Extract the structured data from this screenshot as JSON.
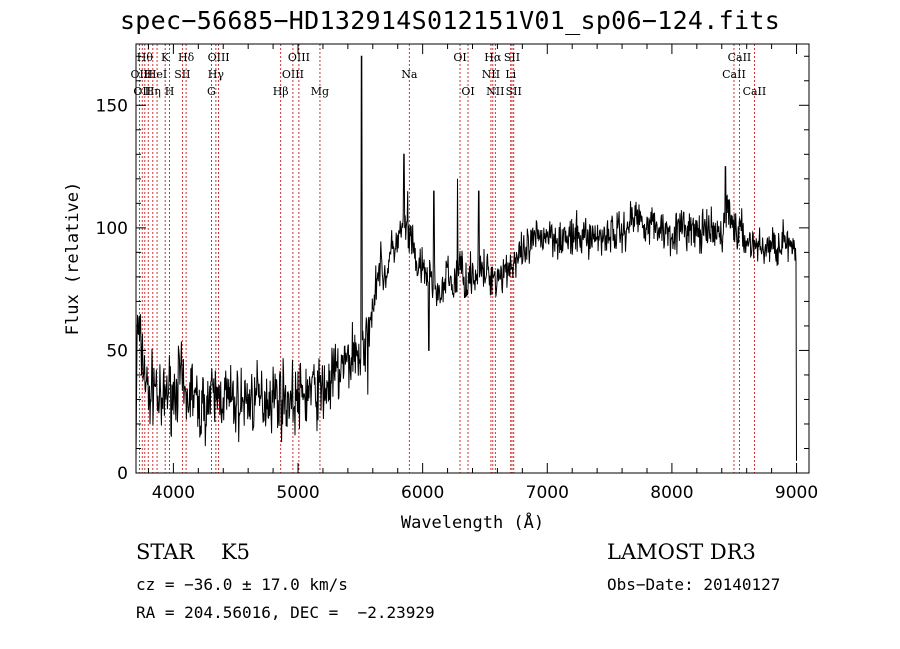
{
  "title": "spec−56685−HD132914S012151V01_sp06−124.fits",
  "info": {
    "object_class": "STAR",
    "subclass": "K5",
    "cz": "cz = −36.0 ± 17.0 km/s",
    "radec": "RA = 204.56016, DEC =  −2.23929",
    "survey": "LAMOST DR3",
    "obs_date": "Obs−Date: 20140127"
  },
  "colors": {
    "spectrum": "#000000",
    "line_marker": "#c00000",
    "axis": "#000000"
  },
  "chart_data": {
    "type": "line",
    "title": "spec−56685−HD132914S012151V01_sp06−124.fits",
    "xlabel": "Wavelength (Å)",
    "ylabel": "Flux (relative)",
    "xlim": [
      3700,
      9100
    ],
    "ylim": [
      0,
      175
    ],
    "xticks": [
      4000,
      5000,
      6000,
      7000,
      8000,
      9000
    ],
    "yticks": [
      0,
      50,
      100,
      150
    ],
    "anchors": [
      [
        3700,
        10
      ],
      [
        3710,
        60
      ],
      [
        3760,
        45
      ],
      [
        3800,
        30
      ],
      [
        3850,
        38
      ],
      [
        3900,
        25
      ],
      [
        3950,
        35
      ],
      [
        4000,
        32
      ],
      [
        4050,
        40
      ],
      [
        4100,
        28
      ],
      [
        4150,
        35
      ],
      [
        4200,
        25
      ],
      [
        4250,
        28
      ],
      [
        4300,
        30
      ],
      [
        4400,
        32
      ],
      [
        4500,
        28
      ],
      [
        4600,
        30
      ],
      [
        4700,
        30
      ],
      [
        4800,
        32
      ],
      [
        4900,
        30
      ],
      [
        5000,
        30
      ],
      [
        5100,
        34
      ],
      [
        5200,
        33
      ],
      [
        5300,
        40
      ],
      [
        5400,
        45
      ],
      [
        5450,
        50
      ],
      [
        5500,
        48
      ],
      [
        5550,
        55
      ],
      [
        5600,
        70
      ],
      [
        5650,
        85
      ],
      [
        5700,
        80
      ],
      [
        5750,
        90
      ],
      [
        5800,
        95
      ],
      [
        5850,
        100
      ],
      [
        5900,
        95
      ],
      [
        5950,
        85
      ],
      [
        6000,
        82
      ],
      [
        6050,
        80
      ],
      [
        6100,
        78
      ],
      [
        6150,
        70
      ],
      [
        6200,
        82
      ],
      [
        6250,
        75
      ],
      [
        6300,
        85
      ],
      [
        6350,
        78
      ],
      [
        6400,
        82
      ],
      [
        6450,
        80
      ],
      [
        6500,
        82
      ],
      [
        6600,
        80
      ],
      [
        6700,
        85
      ],
      [
        6800,
        88
      ],
      [
        6900,
        95
      ],
      [
        7000,
        98
      ],
      [
        7100,
        96
      ],
      [
        7200,
        95
      ],
      [
        7300,
        97
      ],
      [
        7400,
        96
      ],
      [
        7500,
        98
      ],
      [
        7600,
        98
      ],
      [
        7700,
        105
      ],
      [
        7800,
        102
      ],
      [
        7900,
        100
      ],
      [
        8000,
        98
      ],
      [
        8100,
        100
      ],
      [
        8200,
        98
      ],
      [
        8300,
        98
      ],
      [
        8400,
        97
      ],
      [
        8450,
        110
      ],
      [
        8500,
        100
      ],
      [
        8600,
        95
      ],
      [
        8700,
        92
      ],
      [
        8800,
        92
      ],
      [
        8900,
        95
      ],
      [
        8950,
        92
      ],
      [
        9000,
        85
      ]
    ],
    "spikes": [
      [
        5510,
        170
      ],
      [
        5530,
        44
      ],
      [
        5560,
        32
      ],
      [
        5850,
        130
      ],
      [
        5880,
        115
      ],
      [
        6050,
        50
      ],
      [
        6090,
        115
      ],
      [
        6280,
        120
      ],
      [
        6450,
        115
      ],
      [
        8430,
        125
      ],
      [
        8470,
        100
      ],
      [
        8980,
        95
      ],
      [
        9000,
        5
      ]
    ],
    "noise_amplitude": 14,
    "lines": [
      {
        "wavelength": 3727,
        "label": "OII",
        "row": 2
      },
      {
        "wavelength": 3750,
        "label": "OII",
        "row": 3
      },
      {
        "wavelength": 3771,
        "label": "Hθ",
        "row": 1
      },
      {
        "wavelength": 3798,
        "label": "H",
        "row": 2
      },
      {
        "wavelength": 3835,
        "label": "Hη",
        "row": 3
      },
      {
        "wavelength": 3869,
        "label": "HeI",
        "row": 2
      },
      {
        "wavelength": 3934,
        "label": "K",
        "row": 1
      },
      {
        "wavelength": 3969,
        "label": "H",
        "row": 3
      },
      {
        "wavelength": 4072,
        "label": "SII",
        "row": 2
      },
      {
        "wavelength": 4102,
        "label": "Hδ",
        "row": 1
      },
      {
        "wavelength": 4305,
        "label": "G",
        "row": 3
      },
      {
        "wavelength": 4341,
        "label": "Hγ",
        "row": 2
      },
      {
        "wavelength": 4363,
        "label": "OIII",
        "row": 1
      },
      {
        "wavelength": 4861,
        "label": "Hβ",
        "row": 3
      },
      {
        "wavelength": 4959,
        "label": "OIII",
        "row": 2
      },
      {
        "wavelength": 5007,
        "label": "OIII",
        "row": 1
      },
      {
        "wavelength": 5176,
        "label": "Mg",
        "row": 3
      },
      {
        "wavelength": 5893,
        "label": "Na",
        "row": 2
      },
      {
        "wavelength": 6300,
        "label": "OI",
        "row": 1
      },
      {
        "wavelength": 6364,
        "label": "OI",
        "row": 3
      },
      {
        "wavelength": 6548,
        "label": "NII",
        "row": 2
      },
      {
        "wavelength": 6563,
        "label": "Hα",
        "row": 1
      },
      {
        "wavelength": 6583,
        "label": "NII",
        "row": 3
      },
      {
        "wavelength": 6707,
        "label": "Li",
        "row": 2
      },
      {
        "wavelength": 6717,
        "label": "SII",
        "row": 1
      },
      {
        "wavelength": 6731,
        "label": "SII",
        "row": 3
      },
      {
        "wavelength": 8498,
        "label": "CaII",
        "row": 2
      },
      {
        "wavelength": 8542,
        "label": "CaII",
        "row": 1
      },
      {
        "wavelength": 8662,
        "label": "CaII",
        "row": 3
      }
    ]
  }
}
